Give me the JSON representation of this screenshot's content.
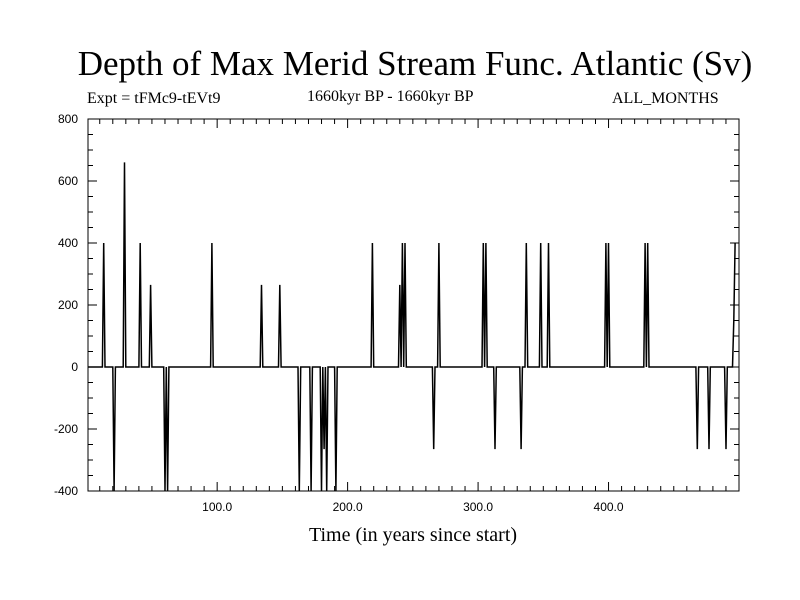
{
  "header": {
    "title": "Depth of Max Merid Stream Func. Atlantic (Sv)",
    "expt": "Expt = tFMc9-tEVt9",
    "period": "1660kyr BP - 1660kyr BP",
    "months": "ALL_MONTHS"
  },
  "chart_data": {
    "type": "line",
    "title": "Depth of Max Merid Stream Func. Atlantic (Sv)",
    "xlabel": "Time (in years since start)",
    "ylabel": "",
    "xlim": [
      1,
      500
    ],
    "ylim": [
      -400,
      800
    ],
    "x_ticks": [
      100,
      200,
      300,
      400
    ],
    "x_tick_labels": [
      "100.0",
      "200.0",
      "300.0",
      "400.0"
    ],
    "y_ticks": [
      800,
      600,
      400,
      200,
      0,
      -200,
      -400
    ],
    "y_tick_labels": [
      "800",
      "600",
      "400",
      "200",
      "0",
      "-200",
      "-400"
    ],
    "grid": false,
    "color": "#000000",
    "series": [
      {
        "x": [
          1,
          12,
          13,
          14,
          20,
          21,
          22,
          23,
          28,
          29,
          30,
          31,
          40,
          41,
          42,
          48,
          49,
          50,
          59,
          60,
          61,
          62,
          63,
          95,
          96,
          97,
          133,
          134,
          135,
          147,
          148,
          149,
          162,
          163,
          164,
          165,
          171,
          172,
          173,
          179,
          180,
          181,
          182,
          183,
          184,
          185,
          186,
          190,
          191,
          192,
          193,
          218,
          219,
          220,
          239,
          240,
          241,
          242,
          243,
          244,
          245,
          265,
          266,
          267,
          269,
          270,
          271,
          303,
          304,
          305,
          306,
          307,
          312,
          313,
          314,
          332,
          333,
          334,
          336,
          337,
          338,
          347,
          348,
          349,
          353,
          354,
          355,
          397,
          398,
          399,
          400,
          401,
          402,
          427,
          428,
          429,
          430,
          431,
          467,
          468,
          469,
          476,
          477,
          478,
          489,
          490,
          491,
          495,
          496,
          497
        ],
        "y": [
          0,
          0,
          400,
          0,
          0,
          -400,
          0,
          0,
          0,
          660,
          0,
          0,
          0,
          400,
          0,
          0,
          265,
          0,
          0,
          -400,
          0,
          -400,
          0,
          0,
          400,
          0,
          0,
          265,
          0,
          0,
          265,
          0,
          0,
          -400,
          0,
          0,
          0,
          -400,
          0,
          0,
          -400,
          0,
          -265,
          0,
          -400,
          0,
          0,
          0,
          -400,
          0,
          0,
          0,
          400,
          0,
          0,
          265,
          0,
          400,
          0,
          400,
          0,
          0,
          -265,
          0,
          0,
          400,
          0,
          0,
          400,
          0,
          400,
          0,
          0,
          -265,
          0,
          0,
          -265,
          0,
          0,
          400,
          0,
          0,
          400,
          0,
          0,
          400,
          0,
          0,
          400,
          0,
          400,
          0,
          0,
          0,
          400,
          0,
          400,
          0,
          0,
          -265,
          0,
          0,
          -265,
          0,
          0,
          -265,
          0,
          0,
          150,
          400
        ]
      }
    ]
  }
}
